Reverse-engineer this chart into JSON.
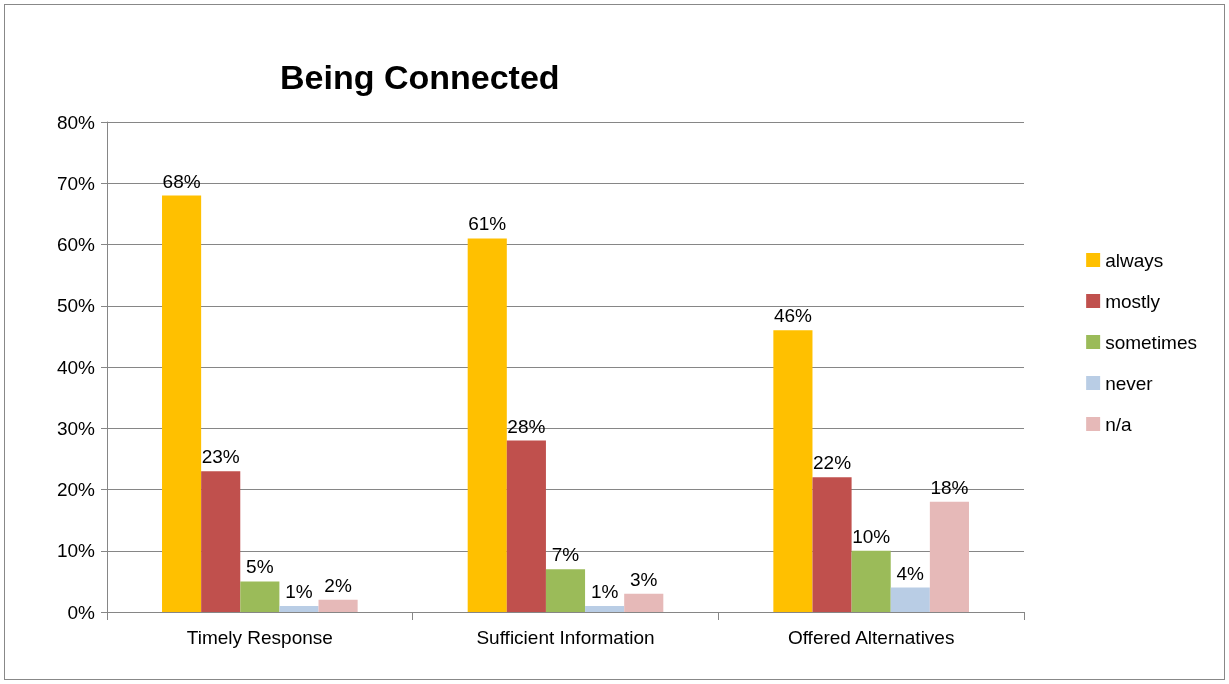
{
  "chart_data": {
    "type": "bar",
    "title": "Being Connected",
    "categories": [
      "Timely Response",
      "Sufficient Information",
      "Offered Alternatives"
    ],
    "series": [
      {
        "name": "always",
        "color": "#ffc000",
        "values": [
          68,
          61,
          46
        ],
        "value_labels": [
          "68%",
          "61%",
          "46%"
        ]
      },
      {
        "name": "mostly",
        "color": "#c0504d",
        "values": [
          23,
          28,
          22
        ],
        "value_labels": [
          "23%",
          "28%",
          "22%"
        ]
      },
      {
        "name": "sometimes",
        "color": "#9bbb59",
        "values": [
          5,
          7,
          10
        ],
        "value_labels": [
          "5%",
          "7%",
          "10%"
        ]
      },
      {
        "name": "never",
        "color": "#b9cde5",
        "values": [
          1,
          1,
          4
        ],
        "value_labels": [
          "1%",
          "1%",
          "4%"
        ]
      },
      {
        "name": "n/a",
        "color": "#e6b9b8",
        "values": [
          2,
          3,
          18
        ],
        "value_labels": [
          "2%",
          "3%",
          "18%"
        ]
      }
    ],
    "ylim": [
      0,
      80
    ],
    "yticks": [
      {
        "value": 0,
        "label": "0%"
      },
      {
        "value": 10,
        "label": "10%"
      },
      {
        "value": 20,
        "label": "20%"
      },
      {
        "value": 30,
        "label": "30%"
      },
      {
        "value": 40,
        "label": "40%"
      },
      {
        "value": 50,
        "label": "50%"
      },
      {
        "value": 60,
        "label": "60%"
      },
      {
        "value": 70,
        "label": "70%"
      },
      {
        "value": 80,
        "label": "80%"
      }
    ],
    "grid": "y",
    "legend": "right"
  }
}
